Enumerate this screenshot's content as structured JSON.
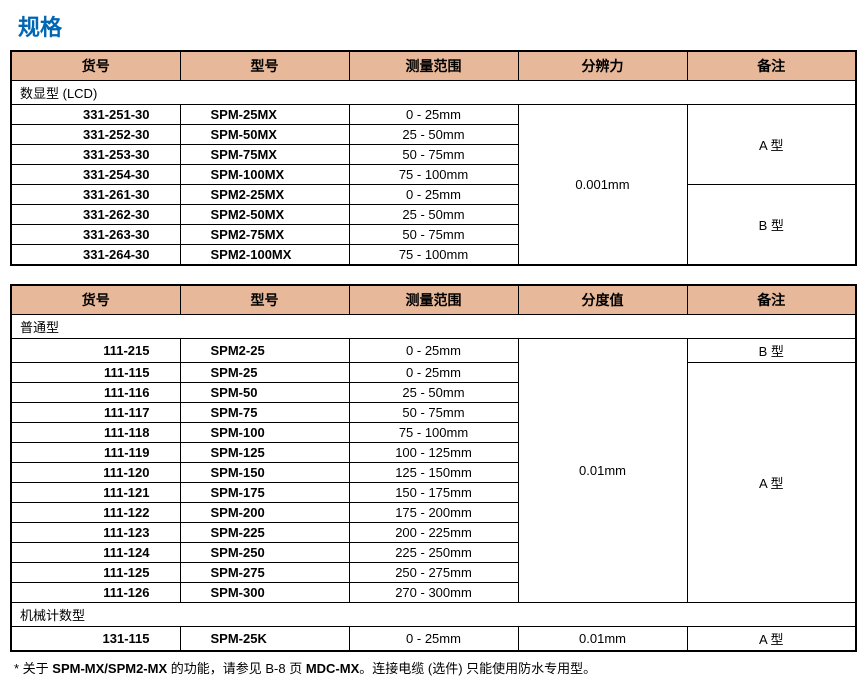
{
  "title": "规格",
  "table1": {
    "headers": {
      "code": "货号",
      "model": "型号",
      "range": "测量范围",
      "resolution": "分辨力",
      "remark": "备注"
    },
    "section_label": "数显型 (LCD)",
    "rows": [
      {
        "code": "331-251-30",
        "model": "SPM-25MX",
        "range": "0 - 25mm"
      },
      {
        "code": "331-252-30",
        "model": "SPM-50MX",
        "range": "25 - 50mm"
      },
      {
        "code": "331-253-30",
        "model": "SPM-75MX",
        "range": "50 - 75mm"
      },
      {
        "code": "331-254-30",
        "model": "SPM-100MX",
        "range": "75 - 100mm"
      },
      {
        "code": "331-261-30",
        "model": "SPM2-25MX",
        "range": "0 - 25mm"
      },
      {
        "code": "331-262-30",
        "model": "SPM2-50MX",
        "range": "25 - 50mm"
      },
      {
        "code": "331-263-30",
        "model": "SPM2-75MX",
        "range": "50 - 75mm"
      },
      {
        "code": "331-264-30",
        "model": "SPM2-100MX",
        "range": "75 - 100mm"
      }
    ],
    "resolution_value": "0.001mm",
    "remark_a": "A 型",
    "remark_b": "B 型"
  },
  "table2": {
    "headers": {
      "code": "货号",
      "model": "型号",
      "range": "测量范围",
      "graduation": "分度值",
      "remark": "备注"
    },
    "section1_label": "普通型",
    "section2_label": "机械计数型",
    "rows_b": [
      {
        "code": "111-215",
        "model": "SPM2-25",
        "range": "0 - 25mm"
      }
    ],
    "rows_a": [
      {
        "code": "111-115",
        "model": "SPM-25",
        "range": "0 - 25mm"
      },
      {
        "code": "111-116",
        "model": "SPM-50",
        "range": "25 - 50mm"
      },
      {
        "code": "111-117",
        "model": "SPM-75",
        "range": "50 - 75mm"
      },
      {
        "code": "111-118",
        "model": "SPM-100",
        "range": "75 - 100mm"
      },
      {
        "code": "111-119",
        "model": "SPM-125",
        "range": "100 - 125mm"
      },
      {
        "code": "111-120",
        "model": "SPM-150",
        "range": "125 - 150mm"
      },
      {
        "code": "111-121",
        "model": "SPM-175",
        "range": "150 - 175mm"
      },
      {
        "code": "111-122",
        "model": "SPM-200",
        "range": "175 - 200mm"
      },
      {
        "code": "111-123",
        "model": "SPM-225",
        "range": "200 - 225mm"
      },
      {
        "code": "111-124",
        "model": "SPM-250",
        "range": "225 - 250mm"
      },
      {
        "code": "111-125",
        "model": "SPM-275",
        "range": "250 - 275mm"
      },
      {
        "code": "111-126",
        "model": "SPM-300",
        "range": "270 - 300mm"
      }
    ],
    "rows_mech": [
      {
        "code": "131-115",
        "model": "SPM-25K",
        "range": "0 - 25mm"
      }
    ],
    "graduation_value": "0.01mm",
    "graduation_value2": "0.01mm",
    "remark_a": "A 型",
    "remark_b": "B 型",
    "remark_mech": "A 型"
  },
  "footnote_prefix": "* 关于 ",
  "footnote_bold1": "SPM-MX/SPM2-MX",
  "footnote_mid": " 的功能，请参见 B-8 页 ",
  "footnote_bold2": "MDC-MX",
  "footnote_suffix": "。连接电缆 (选件) 只能使用防水专用型。"
}
